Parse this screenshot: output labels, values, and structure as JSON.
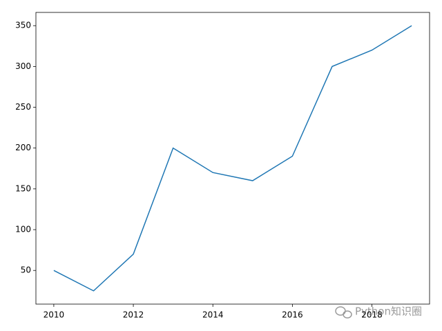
{
  "chart_data": {
    "type": "line",
    "x": [
      2010,
      2011,
      2012,
      2013,
      2014,
      2015,
      2016,
      2017,
      2018,
      2019
    ],
    "series": [
      {
        "color": "#1f77b4",
        "values": [
          50,
          25,
          70,
          200,
          170,
          160,
          190,
          300,
          320,
          350
        ]
      }
    ],
    "xlim": [
      2009.55,
      2019.45
    ],
    "xticks": [
      2010,
      2012,
      2014,
      2016,
      2018
    ],
    "ylim": [
      8.75,
      366.25
    ],
    "yticks": [
      50,
      100,
      150,
      200,
      250,
      300,
      350
    ],
    "grid": false
  },
  "watermark": "Python知识圈"
}
